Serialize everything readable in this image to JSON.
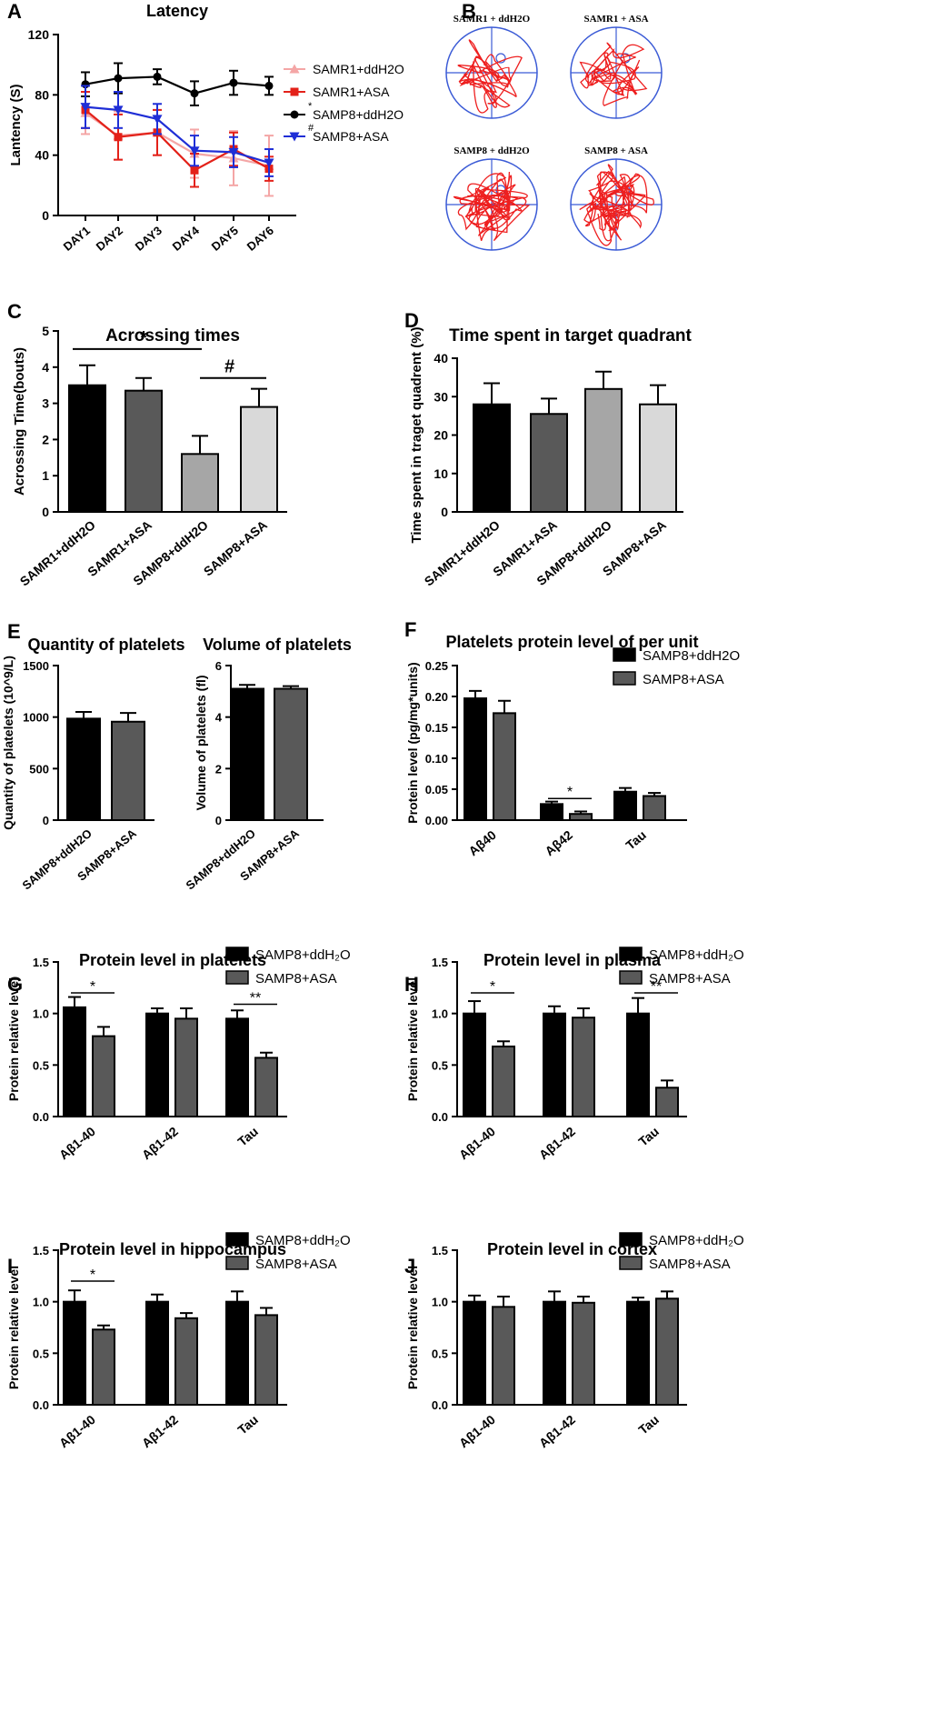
{
  "figure_title": "Behavioral, platelet and protein level panels",
  "colors": {
    "black": "#000000",
    "dark_gray": "#595959",
    "mid_gray": "#a6a6a6",
    "light_gray": "#d9d9d9",
    "pink": "#f4a6a6",
    "red": "#e32119",
    "blue": "#1f2ed6",
    "track_red": "#ee1f1f",
    "pool_blue": "#3b5bd6"
  },
  "chart_data": [
    {
      "id": "A",
      "panel_letter": "A",
      "type": "line",
      "title": "Latency",
      "xlabel": "",
      "ylabel": "Lantency (S)",
      "categories": [
        "DAY1",
        "DAY2",
        "DAY3",
        "DAY4",
        "DAY5",
        "DAY6"
      ],
      "ylim": [
        0,
        120
      ],
      "yticks": [
        "0",
        "40",
        "80",
        "120"
      ],
      "series": [
        {
          "name": "SAMR1+ddH2O",
          "color": "pink",
          "marker": "triangle-up",
          "mark": "",
          "values": [
            68,
            53,
            55,
            41,
            38,
            33
          ],
          "errors": [
            14,
            16,
            15,
            16,
            18,
            20
          ]
        },
        {
          "name": "SAMR1+ASA",
          "color": "red",
          "marker": "square",
          "mark": "",
          "values": [
            70,
            52,
            55,
            30,
            44,
            31
          ],
          "errors": [
            12,
            15,
            15,
            11,
            11,
            8
          ]
        },
        {
          "name": "SAMP8+ddH2O",
          "color": "black",
          "marker": "circle",
          "mark": "*",
          "values": [
            87,
            91,
            92,
            81,
            88,
            86
          ],
          "errors": [
            8,
            10,
            5,
            8,
            8,
            6
          ]
        },
        {
          "name": "SAMP8+ASA",
          "color": "blue",
          "marker": "triangle-down",
          "mark": "#",
          "values": [
            72,
            70,
            64,
            43,
            42,
            35
          ],
          "errors": [
            14,
            12,
            10,
            10,
            10,
            9
          ]
        }
      ]
    },
    {
      "id": "C",
      "panel_letter": "C",
      "type": "bar",
      "title": "Acrossing times",
      "ylabel": "Acrossing Time(bouts)",
      "categories": [
        "SAMR1+ddH2O",
        "SAMR1+ASA",
        "SAMP8+ddH2O",
        "SAMP8+ASA"
      ],
      "values": [
        3.5,
        3.35,
        1.6,
        2.9
      ],
      "errors": [
        0.55,
        0.35,
        0.5,
        0.5
      ],
      "bar_colors": [
        "black",
        "dark_gray",
        "mid_gray",
        "light_gray"
      ],
      "ylim": [
        0,
        5
      ],
      "yticks": [
        "0",
        "1",
        "2",
        "3",
        "4",
        "5"
      ],
      "significance": [
        {
          "from": 0,
          "to": 2,
          "label": "*",
          "y": 4.5
        },
        {
          "from": 2,
          "to": 3,
          "label": "#",
          "y": 3.7
        }
      ]
    },
    {
      "id": "D",
      "panel_letter": "D",
      "type": "bar",
      "title": "Time spent in target quadrant",
      "ylabel": "Time spent in traget quadrent (%)",
      "categories": [
        "SAMR1+ddH2O",
        "SAMR1+ASA",
        "SAMP8+ddH2O",
        "SAMP8+ASA"
      ],
      "values": [
        28,
        25.5,
        32,
        28
      ],
      "errors": [
        5.5,
        4,
        4.5,
        5
      ],
      "bar_colors": [
        "black",
        "dark_gray",
        "mid_gray",
        "light_gray"
      ],
      "ylim": [
        0,
        40
      ],
      "yticks": [
        "0",
        "10",
        "20",
        "30",
        "40"
      ],
      "significance": []
    },
    {
      "id": "E1",
      "panel_letter": "E",
      "type": "bar",
      "title": "Quantity of platelets",
      "ylabel": "Quantity of platelets (10^9/L)",
      "categories": [
        "SAMP8+ddH2O",
        "SAMP8+ASA"
      ],
      "values": [
        985,
        955
      ],
      "errors": [
        65,
        85
      ],
      "bar_colors": [
        "black",
        "dark_gray"
      ],
      "ylim": [
        0,
        1500
      ],
      "yticks": [
        "0",
        "500",
        "1000",
        "1500"
      ],
      "significance": []
    },
    {
      "id": "E2",
      "panel_letter": "",
      "type": "bar",
      "title": "Volume of platelets",
      "ylabel": "Volume of platelets (fl)",
      "categories": [
        "SAMP8+ddH2O",
        "SAMP8+ASA"
      ],
      "values": [
        5.1,
        5.1
      ],
      "errors": [
        0.15,
        0.1
      ],
      "bar_colors": [
        "black",
        "dark_gray"
      ],
      "ylim": [
        0,
        6
      ],
      "yticks": [
        "0",
        "2",
        "4",
        "6"
      ],
      "significance": []
    },
    {
      "id": "F",
      "panel_letter": "F",
      "type": "grouped-bar",
      "title": "Platelets protein level of per unit",
      "ylabel": "Protein level (pg/mg*units)",
      "categories": [
        "Aβ40",
        "Aβ42",
        "Tau"
      ],
      "ylim": [
        0,
        0.25
      ],
      "yticks": [
        "0.00",
        "0.05",
        "0.10",
        "0.15",
        "0.20",
        "0.25"
      ],
      "series": [
        {
          "name": "SAMP8+ddH2O",
          "color": "black",
          "values": [
            0.197,
            0.026,
            0.046
          ],
          "errors": [
            0.012,
            0.004,
            0.006
          ]
        },
        {
          "name": "SAMP8+ASA",
          "color": "dark_gray",
          "values": [
            0.173,
            0.01,
            0.039
          ],
          "errors": [
            0.02,
            0.004,
            0.005
          ]
        }
      ],
      "significance": [
        {
          "group": 1,
          "label": "*",
          "y": 0.035
        }
      ]
    },
    {
      "id": "G",
      "panel_letter": "G",
      "type": "grouped-bar",
      "title": "Protein level in platelets",
      "ylabel": "Protein relative level",
      "categories": [
        "Aβ1-40",
        "Aβ1-42",
        "Tau"
      ],
      "ylim": [
        0,
        1.5
      ],
      "yticks": [
        "0.0",
        "0.5",
        "1.0",
        "1.5"
      ],
      "series": [
        {
          "name": "SAMP8+ddH₂O",
          "color": "black",
          "values": [
            1.06,
            1.0,
            0.95
          ],
          "errors": [
            0.1,
            0.05,
            0.08
          ]
        },
        {
          "name": "SAMP8+ASA",
          "color": "dark_gray",
          "values": [
            0.78,
            0.95,
            0.57
          ],
          "errors": [
            0.09,
            0.1,
            0.05
          ]
        }
      ],
      "significance": [
        {
          "group": 0,
          "label": "*",
          "y": 1.2
        },
        {
          "group": 2,
          "label": "**",
          "y": 1.09
        }
      ]
    },
    {
      "id": "H",
      "panel_letter": "H",
      "type": "grouped-bar",
      "title": "Protein level in plasma",
      "ylabel": "Protein relative level",
      "categories": [
        "Aβ1-40",
        "Aβ1-42",
        "Tau"
      ],
      "ylim": [
        0,
        1.5
      ],
      "yticks": [
        "0.0",
        "0.5",
        "1.0",
        "1.5"
      ],
      "series": [
        {
          "name": "SAMP8+ddH₂O",
          "color": "black",
          "values": [
            1.0,
            1.0,
            1.0
          ],
          "errors": [
            0.12,
            0.07,
            0.15
          ]
        },
        {
          "name": "SAMP8+ASA",
          "color": "dark_gray",
          "values": [
            0.68,
            0.96,
            0.28
          ],
          "errors": [
            0.05,
            0.09,
            0.07
          ]
        }
      ],
      "significance": [
        {
          "group": 0,
          "label": "*",
          "y": 1.2
        },
        {
          "group": 2,
          "label": "**",
          "y": 1.2
        }
      ]
    },
    {
      "id": "I",
      "panel_letter": "I",
      "type": "grouped-bar",
      "title": "Protein level in hippocampus",
      "ylabel": "Protein relative level",
      "categories": [
        "Aβ1-40",
        "Aβ1-42",
        "Tau"
      ],
      "ylim": [
        0,
        1.5
      ],
      "yticks": [
        "0.0",
        "0.5",
        "1.0",
        "1.5"
      ],
      "series": [
        {
          "name": "SAMP8+ddH₂O",
          "color": "black",
          "values": [
            1.0,
            1.0,
            1.0
          ],
          "errors": [
            0.11,
            0.07,
            0.1
          ]
        },
        {
          "name": "SAMP8+ASA",
          "color": "dark_gray",
          "values": [
            0.73,
            0.84,
            0.87
          ],
          "errors": [
            0.04,
            0.05,
            0.07
          ]
        }
      ],
      "significance": [
        {
          "group": 0,
          "label": "*",
          "y": 1.2
        }
      ]
    },
    {
      "id": "J",
      "panel_letter": "J",
      "type": "grouped-bar",
      "title": "Protein level in cortex",
      "ylabel": "Protein relative level",
      "categories": [
        "Aβ1-40",
        "Aβ1-42",
        "Tau"
      ],
      "ylim": [
        0,
        1.5
      ],
      "yticks": [
        "0.0",
        "0.5",
        "1.0",
        "1.5"
      ],
      "series": [
        {
          "name": "SAMP8+ddH₂O",
          "color": "black",
          "values": [
            1.0,
            1.0,
            1.0
          ],
          "errors": [
            0.06,
            0.1,
            0.04
          ]
        },
        {
          "name": "SAMP8+ASA",
          "color": "dark_gray",
          "values": [
            0.95,
            0.99,
            1.03
          ],
          "errors": [
            0.1,
            0.06,
            0.07
          ]
        }
      ],
      "significance": []
    }
  ],
  "panel_b": {
    "letter": "B",
    "pools": [
      {
        "label": "SAMR1 + ddH2O"
      },
      {
        "label": "SAMR1 + ASA"
      },
      {
        "label": "SAMP8 + ddH2O"
      },
      {
        "label": "SAMP8 + ASA"
      }
    ]
  }
}
